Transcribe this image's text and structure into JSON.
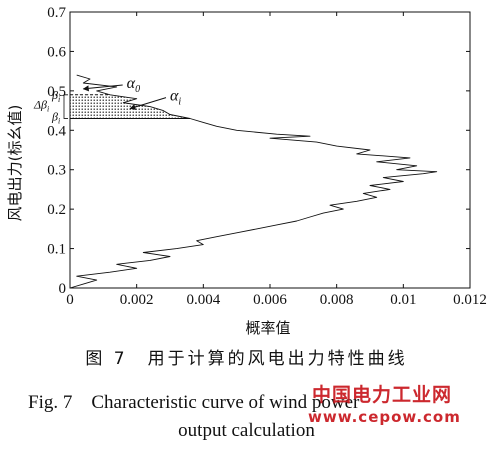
{
  "chart_data": {
    "type": "line",
    "title": "",
    "xlabel": "概率值",
    "ylabel": "风电出力(标幺值)",
    "xlim": [
      0,
      0.012
    ],
    "ylim": [
      0,
      0.7
    ],
    "x_ticks": [
      "0",
      "0.002",
      "0.004",
      "0.006",
      "0.008",
      "0.01",
      "0.012"
    ],
    "y_ticks": [
      "0",
      "0.1",
      "0.2",
      "0.3",
      "0.4",
      "0.5",
      "0.6",
      "0.7"
    ],
    "grid": false,
    "series": [
      {
        "points": [
          [
            0.0,
            0.0
          ],
          [
            0.0004,
            0.01
          ],
          [
            0.0008,
            0.02
          ],
          [
            0.0002,
            0.03
          ],
          [
            0.0012,
            0.04
          ],
          [
            0.002,
            0.05
          ],
          [
            0.0014,
            0.06
          ],
          [
            0.0024,
            0.07
          ],
          [
            0.003,
            0.08
          ],
          [
            0.0022,
            0.09
          ],
          [
            0.0032,
            0.1
          ],
          [
            0.004,
            0.11
          ],
          [
            0.0038,
            0.12
          ],
          [
            0.0044,
            0.13
          ],
          [
            0.005,
            0.14
          ],
          [
            0.0056,
            0.15
          ],
          [
            0.0062,
            0.16
          ],
          [
            0.0068,
            0.17
          ],
          [
            0.0072,
            0.18
          ],
          [
            0.0076,
            0.19
          ],
          [
            0.0082,
            0.2
          ],
          [
            0.0078,
            0.21
          ],
          [
            0.0086,
            0.22
          ],
          [
            0.0092,
            0.23
          ],
          [
            0.0088,
            0.24
          ],
          [
            0.0096,
            0.25
          ],
          [
            0.009,
            0.26
          ],
          [
            0.01,
            0.27
          ],
          [
            0.0094,
            0.28
          ],
          [
            0.0106,
            0.29
          ],
          [
            0.011,
            0.295
          ],
          [
            0.0098,
            0.3
          ],
          [
            0.0104,
            0.31
          ],
          [
            0.0092,
            0.32
          ],
          [
            0.0102,
            0.33
          ],
          [
            0.0086,
            0.34
          ],
          [
            0.009,
            0.35
          ],
          [
            0.008,
            0.36
          ],
          [
            0.0074,
            0.37
          ],
          [
            0.006,
            0.38
          ],
          [
            0.0072,
            0.385
          ],
          [
            0.0062,
            0.39
          ],
          [
            0.005,
            0.4
          ],
          [
            0.0044,
            0.41
          ],
          [
            0.004,
            0.42
          ],
          [
            0.0036,
            0.43
          ],
          [
            0.003,
            0.44
          ],
          [
            0.0028,
            0.45
          ],
          [
            0.0024,
            0.46
          ],
          [
            0.0016,
            0.47
          ],
          [
            0.002,
            0.48
          ],
          [
            0.0012,
            0.49
          ],
          [
            0.0008,
            0.5
          ],
          [
            0.0014,
            0.51
          ],
          [
            0.0004,
            0.52
          ],
          [
            0.0006,
            0.53
          ],
          [
            0.0002,
            0.54
          ]
        ]
      }
    ],
    "shaded_region": {
      "y_range": [
        0.43,
        0.49
      ],
      "pattern": "dotted"
    },
    "annotations": [
      {
        "text": "α",
        "sub": "0",
        "x": 0.0017,
        "y": 0.52,
        "arrow_to": [
          0.0004,
          0.505
        ]
      },
      {
        "text": "α",
        "sub": "i",
        "x": 0.003,
        "y": 0.488,
        "arrow_to": [
          0.0018,
          0.455
        ]
      },
      {
        "text": "Δβ",
        "sub": "i",
        "y": 0.465
      },
      {
        "text": "β",
        "sub": "i",
        "y": 0.49
      },
      {
        "text": "β",
        "sub": "i",
        "y": 0.435
      }
    ]
  },
  "caption": {
    "cn": "图 7　用于计算的风电出力特性曲线",
    "en_line1": "Fig. 7　Characteristic curve of wind power",
    "en_line2": "output calculation"
  },
  "watermark": {
    "cn": "中国电力工业网",
    "url": "www.cepow.com"
  },
  "colors": {
    "line": "#111111",
    "watermark": "#c8161d"
  }
}
